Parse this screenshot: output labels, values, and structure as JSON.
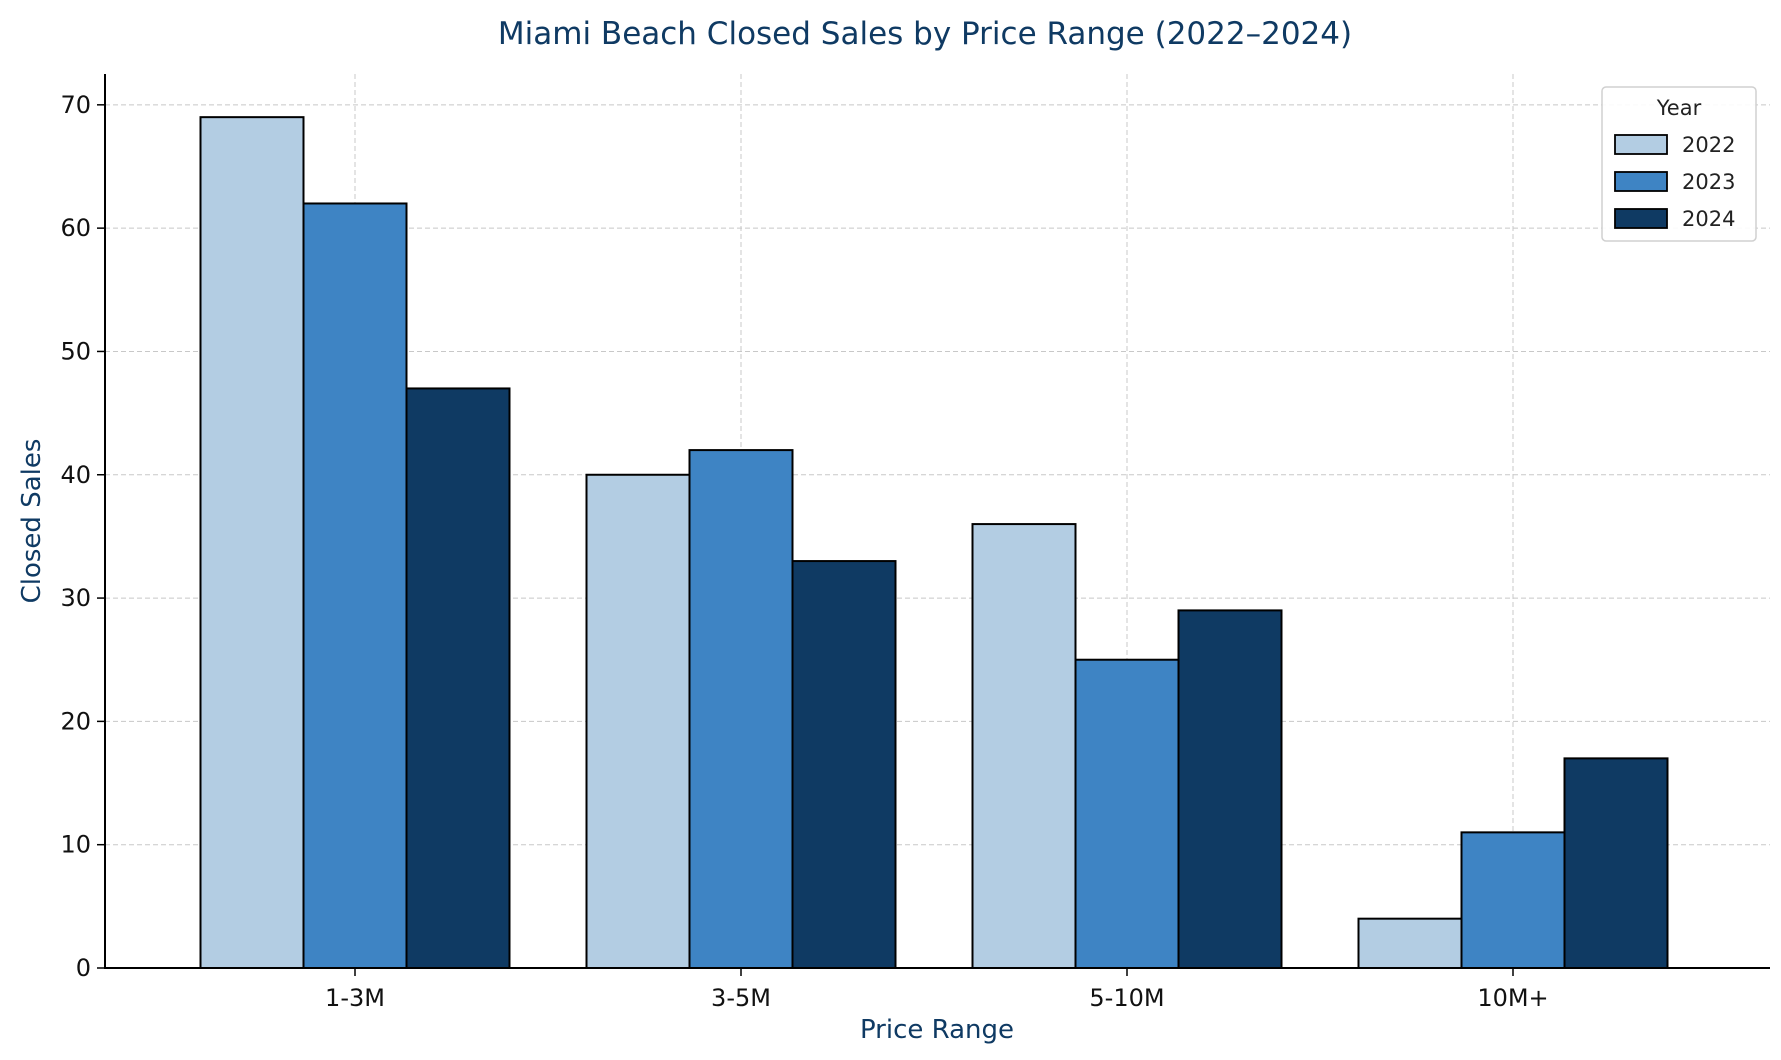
{
  "chart_data": {
    "type": "bar",
    "title": "Miami Beach Closed Sales by Price Range (2022–2024)",
    "xlabel": "Price Range",
    "ylabel": "Closed Sales",
    "categories": [
      "1-3M",
      "3-5M",
      "5-10M",
      "10M+"
    ],
    "series": [
      {
        "name": "2022",
        "color": "#b3cde3",
        "values": [
          69,
          40,
          36,
          4
        ]
      },
      {
        "name": "2023",
        "color": "#3e84c4",
        "values": [
          62,
          42,
          25,
          11
        ]
      },
      {
        "name": "2024",
        "color": "#0f3a63",
        "values": [
          47,
          33,
          29,
          17
        ]
      }
    ],
    "ylim": [
      0,
      72.5
    ],
    "yticks": [
      0,
      10,
      20,
      30,
      40,
      50,
      60,
      70
    ],
    "grid": true,
    "legend": {
      "title": "Year",
      "placement": "top-right"
    },
    "colors": {
      "title": "#0f3a63",
      "axis_label": "#0f3a63",
      "bar_edge": "#000000",
      "grid": "#c8c8c8"
    }
  }
}
